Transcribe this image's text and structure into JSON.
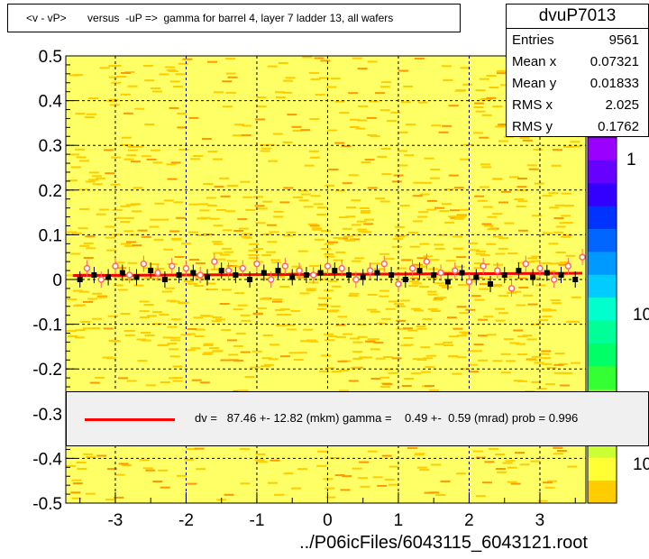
{
  "title": "<v - vP>       versus  -uP =>  gamma for barrel 4, layer 7 ladder 13, all wafers",
  "stats": {
    "name": "dvuP7013",
    "rows": [
      {
        "label": "Entries",
        "value": "9561"
      },
      {
        "label": "Mean x",
        "value": "0.07321"
      },
      {
        "label": "Mean y",
        "value": "0.01833"
      },
      {
        "label": "RMS x",
        "value": "2.025"
      },
      {
        "label": "RMS y",
        "value": "0.1762"
      }
    ]
  },
  "legend": {
    "text": "dv =   87.46 +- 12.82 (mkm) gamma =    0.49 +-  0.59 (mrad) prob = 0.996",
    "line_color": "#ff0000"
  },
  "palette_labels": [
    "1",
    "10",
    "10"
  ],
  "chart_data": {
    "type": "scatter",
    "title": "<v - vP>       versus  -uP =>  gamma for barrel 4, layer 7 ladder 13, all wafers",
    "xlabel": "../P06icFiles/6043115_6043121.root",
    "ylabel": "",
    "xlim": [
      -3.7,
      3.65
    ],
    "ylim": [
      -0.5,
      0.5
    ],
    "x_ticks": [
      "-3",
      "-2",
      "-1",
      "0",
      "1",
      "2",
      "3"
    ],
    "y_ticks": [
      "-0.5",
      "-0.4",
      "-0.3",
      "-0.2",
      "-0.1",
      "0",
      "0.1",
      "0.2",
      "0.3",
      "0.4",
      "0.5"
    ],
    "grid": true,
    "background_colors": [
      "#ffff66",
      "#ffcc00"
    ],
    "fit_line": {
      "x": [
        -3.6,
        3.6
      ],
      "y": [
        0.009,
        0.014
      ],
      "color": "#ff0000"
    },
    "series": [
      {
        "name": "",
        "color": "#000000",
        "x": [
          -3.5,
          -3.3,
          -3.1,
          -2.9,
          -2.7,
          -2.5,
          -2.3,
          -2.1,
          -1.9,
          -1.7,
          -1.5,
          -1.3,
          -1.1,
          -0.9,
          -0.7,
          -0.5,
          -0.3,
          -0.1,
          0.1,
          0.3,
          0.5,
          0.7,
          0.9,
          1.1,
          1.3,
          1.5,
          1.7,
          1.9,
          2.1,
          2.3,
          2.5,
          2.7,
          2.9,
          3.1,
          3.3,
          3.5
        ],
        "y": [
          0.0,
          0.01,
          0.005,
          0.015,
          0.005,
          0.02,
          0.0,
          0.01,
          0.015,
          0.005,
          0.02,
          0.01,
          0.0,
          0.015,
          0.02,
          0.005,
          0.01,
          0.015,
          0.02,
          0.01,
          0.005,
          0.015,
          0.01,
          0.0,
          0.02,
          0.01,
          -0.005,
          0.015,
          0.005,
          -0.01,
          0.01,
          0.02,
          0.005,
          0.015,
          0.01,
          0.0
        ]
      },
      {
        "name": "",
        "color": "#ff6666",
        "x": [
          -3.4,
          -3.2,
          -3.0,
          -2.8,
          -2.6,
          -2.4,
          -2.2,
          -2.0,
          -1.8,
          -1.6,
          -1.4,
          -1.2,
          -1.0,
          -0.8,
          -0.6,
          -0.4,
          -0.2,
          0.0,
          0.2,
          0.4,
          0.6,
          0.8,
          1.0,
          1.2,
          1.4,
          1.6,
          1.8,
          2.0,
          2.2,
          2.4,
          2.6,
          2.8,
          3.0,
          3.2,
          3.4,
          3.6
        ],
        "y": [
          0.025,
          0.0,
          0.03,
          0.01,
          0.035,
          0.015,
          0.03,
          0.025,
          0.01,
          0.04,
          0.02,
          0.025,
          0.035,
          0.0,
          0.03,
          0.02,
          0.01,
          0.03,
          0.025,
          0.0,
          0.02,
          0.035,
          -0.01,
          0.025,
          0.04,
          0.015,
          0.02,
          -0.005,
          0.03,
          0.02,
          -0.02,
          0.035,
          0.025,
          0.0,
          0.03,
          0.05
        ]
      }
    ]
  }
}
